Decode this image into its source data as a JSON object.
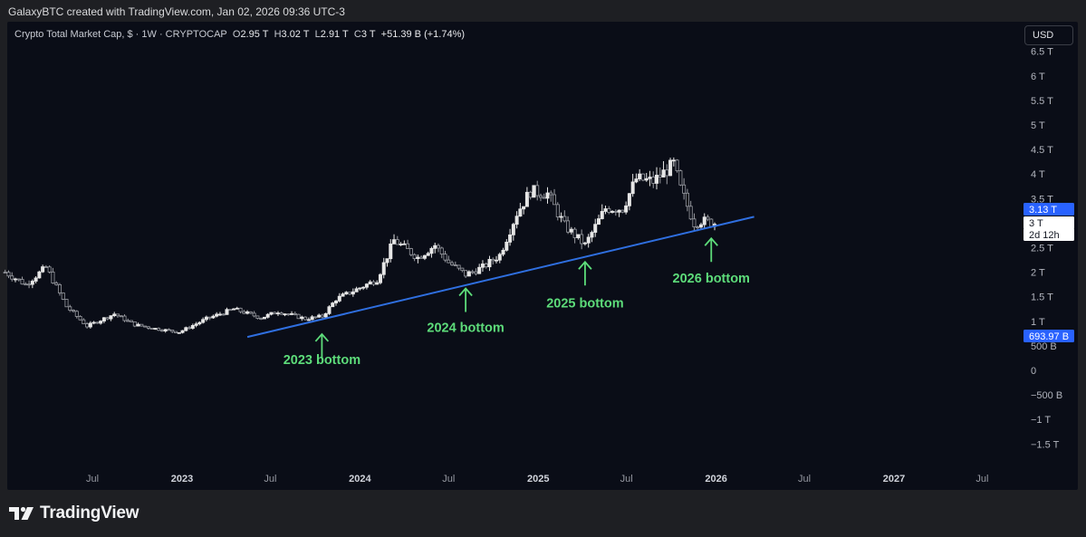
{
  "caption": "GalaxyBTC created with TradingView.com, Jan 02, 2026 09:36 UTC-3",
  "legend": {
    "symbol": "Crypto Total Market Cap, $ · 1W · CRYPTOCAP",
    "open_label": "O",
    "open": "2.95 T",
    "high_label": "H",
    "high": "3.02 T",
    "low_label": "L",
    "low": "2.91 T",
    "close_label": "C",
    "close": "3 T",
    "change": "+51.39 B (+1.74%)"
  },
  "currency_button": "USD",
  "brand": {
    "name": "TradingView",
    "logo_icon": "tradingview-logo-icon"
  },
  "colors": {
    "background": "#0a0d17",
    "candle_up": "#e6e6e6",
    "candle_down": "#9a9ca2",
    "trendline": "#2f6fe0",
    "annotation": "#5ddc7a",
    "price_tag": "#2962ff"
  },
  "chart_data": {
    "type": "candlestick",
    "interval": "1W",
    "y_axis": {
      "side": "right",
      "ticks": [
        "6.5 T",
        "6 T",
        "5.5 T",
        "5 T",
        "4.5 T",
        "4 T",
        "3.5 T",
        "3 T",
        "2.5 T",
        "2 T",
        "1.5 T",
        "1 T",
        "500 B",
        "0",
        "−500 B",
        "−1 T",
        "−1.5 T"
      ],
      "tick_values": [
        6.5,
        6,
        5.5,
        5,
        4.5,
        4,
        3.5,
        3,
        2.5,
        2,
        1.5,
        1,
        0.5,
        0,
        -0.5,
        -1,
        -1.5
      ],
      "unit": "T USD"
    },
    "x_axis": {
      "ticks": [
        "Jul",
        "2023",
        "Jul",
        "2024",
        "Jul",
        "2025",
        "Jul",
        "2026",
        "Jul",
        "2027",
        "Jul"
      ],
      "tick_dates": [
        "2022-07-01",
        "2023-01-01",
        "2023-07-01",
        "2024-01-01",
        "2024-07-01",
        "2025-01-01",
        "2025-07-01",
        "2026-01-01",
        "2026-07-01",
        "2027-01-01",
        "2027-07-01"
      ]
    },
    "price_tags": [
      {
        "label": "3.13 T",
        "value": 3.13,
        "style": "blue"
      },
      {
        "label": "3 T",
        "value": 3.0,
        "style": "white"
      },
      {
        "label": "2d 12h",
        "value": 2.95,
        "style": "white"
      },
      {
        "label": "693.97 B",
        "value": 0.694,
        "style": "blue"
      }
    ],
    "trendline": {
      "start": {
        "date": "2023-05-15",
        "value": 0.68
      },
      "end": {
        "date": "2026-03-20",
        "value": 3.13
      }
    },
    "annotations": [
      {
        "text": "2023 bottom",
        "date": "2023-10-15",
        "value": 0.85,
        "label_value": 0.2
      },
      {
        "text": "2024 bottom",
        "date": "2024-08-05",
        "value": 1.78,
        "label_value": 0.86
      },
      {
        "text": "2025 bottom",
        "date": "2025-04-07",
        "value": 2.32,
        "label_value": 1.36
      },
      {
        "text": "2026 bottom",
        "date": "2025-12-22",
        "value": 2.8,
        "label_value": 1.86
      }
    ],
    "weekly_close_anchors": [
      {
        "date": "2022-01-03",
        "value": 2.0
      },
      {
        "date": "2022-02-14",
        "value": 1.75
      },
      {
        "date": "2022-03-28",
        "value": 2.1
      },
      {
        "date": "2022-05-09",
        "value": 1.3
      },
      {
        "date": "2022-06-20",
        "value": 0.9
      },
      {
        "date": "2022-08-15",
        "value": 1.15
      },
      {
        "date": "2022-09-26",
        "value": 0.93
      },
      {
        "date": "2022-11-07",
        "value": 0.85
      },
      {
        "date": "2022-12-26",
        "value": 0.78
      },
      {
        "date": "2023-02-20",
        "value": 1.05
      },
      {
        "date": "2023-04-17",
        "value": 1.25
      },
      {
        "date": "2023-06-12",
        "value": 1.07
      },
      {
        "date": "2023-07-17",
        "value": 1.2
      },
      {
        "date": "2023-09-11",
        "value": 1.05
      },
      {
        "date": "2023-10-16",
        "value": 1.1
      },
      {
        "date": "2023-11-13",
        "value": 1.45
      },
      {
        "date": "2023-12-25",
        "value": 1.65
      },
      {
        "date": "2024-02-05",
        "value": 1.85
      },
      {
        "date": "2024-03-11",
        "value": 2.65
      },
      {
        "date": "2024-04-29",
        "value": 2.3
      },
      {
        "date": "2024-06-03",
        "value": 2.55
      },
      {
        "date": "2024-07-01",
        "value": 2.2
      },
      {
        "date": "2024-08-05",
        "value": 1.95
      },
      {
        "date": "2024-09-09",
        "value": 2.1
      },
      {
        "date": "2024-10-14",
        "value": 2.35
      },
      {
        "date": "2024-11-18",
        "value": 3.2
      },
      {
        "date": "2024-12-16",
        "value": 3.65
      },
      {
        "date": "2025-01-20",
        "value": 3.6
      },
      {
        "date": "2025-02-24",
        "value": 2.95
      },
      {
        "date": "2025-04-07",
        "value": 2.55
      },
      {
        "date": "2025-05-19",
        "value": 3.3
      },
      {
        "date": "2025-06-23",
        "value": 3.3
      },
      {
        "date": "2025-07-21",
        "value": 3.9
      },
      {
        "date": "2025-08-25",
        "value": 3.85
      },
      {
        "date": "2025-10-06",
        "value": 4.2
      },
      {
        "date": "2025-10-20",
        "value": 3.7
      },
      {
        "date": "2025-11-17",
        "value": 3.0
      },
      {
        "date": "2025-12-01",
        "value": 3.05
      },
      {
        "date": "2025-12-29",
        "value": 3.0
      }
    ]
  }
}
